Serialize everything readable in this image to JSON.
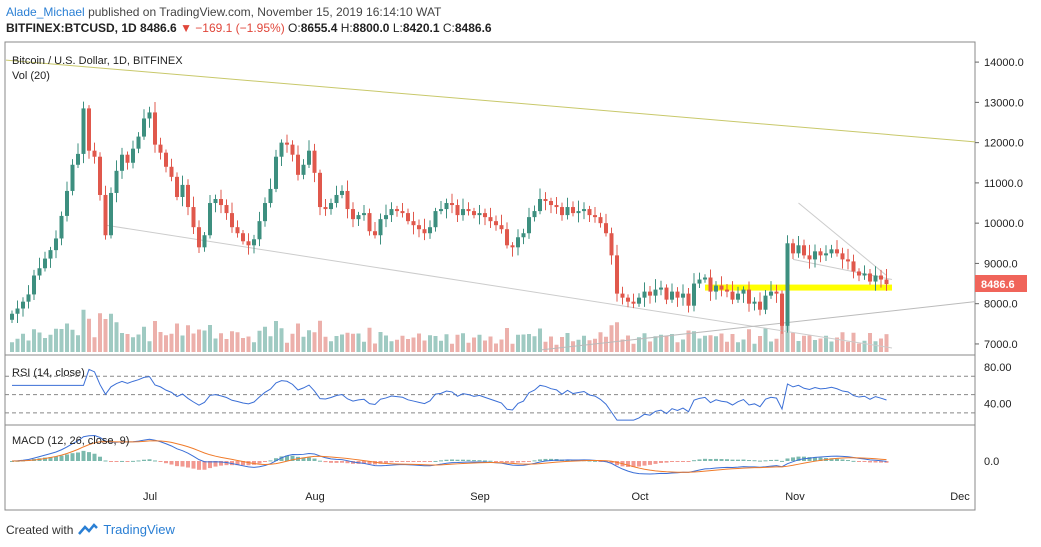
{
  "header": {
    "user": "Alade_Michael",
    "published_text": "published on TradingView.com, November 15, 2019 16:14:10 WAT",
    "symbol": "BITFINEX:BTCUSD, 1D",
    "last": "8486.6",
    "change": "−169.1 (−1.95%)",
    "o_label": "O:",
    "o": "8655.4",
    "h_label": "H:",
    "h": "8800.0",
    "l_label": "L:",
    "l": "8420.1",
    "c_label": "C:",
    "c": "8486.6"
  },
  "panes": {
    "main_title": "Bitcoin / U.S. Dollar, 1D, BITFINEX",
    "vol_title": "Vol (20)",
    "rsi_title": "RSI (14, close)",
    "macd_title": "MACD (12, 26, close, 9)"
  },
  "price_label": "8486.6",
  "footer": {
    "created_with": "Created with",
    "brand": "TradingView"
  },
  "colors": {
    "up": "#3d8f7f",
    "down": "#e0584c",
    "rsi": "#3b6fd6",
    "signal": "#f07b2a",
    "highlight": "#ffff00",
    "trend": "#ffffff",
    "long_trend": "#c8c86a"
  },
  "chart_data": {
    "type": "candlestick",
    "title": "Bitcoin / U.S. Dollar, 1D, BITFINEX",
    "symbol": "BITFINEX:BTCUSD",
    "interval": "1D",
    "x_ticks": [
      "Jul",
      "Aug",
      "Sep",
      "Oct",
      "Nov",
      "Dec"
    ],
    "y_ticks": [
      7000.0,
      8000.0,
      9000.0,
      10000.0,
      11000.0,
      12000.0,
      13000.0,
      14000.0
    ],
    "y_range": [
      6800,
      14400
    ],
    "last_price": 8486.6,
    "highlight_level": 8400,
    "rsi_ticks": [
      40.0,
      80.0
    ],
    "rsi_bands": [
      30,
      50,
      70
    ],
    "macd_ticks": [
      0.0
    ],
    "series": [
      {
        "name": "close",
        "values": [
          7750,
          7880,
          8050,
          8230,
          8700,
          8880,
          9120,
          9330,
          9620,
          10180,
          10800,
          11450,
          11720,
          12850,
          11800,
          11650,
          10700,
          9700,
          10750,
          11300,
          11700,
          11500,
          11850,
          12150,
          12600,
          12750,
          11950,
          11750,
          11400,
          11150,
          10650,
          10950,
          10400,
          9900,
          9400,
          9700,
          10500,
          10600,
          10450,
          10250,
          9900,
          9750,
          9550,
          9450,
          9600,
          10050,
          10500,
          10850,
          11650,
          12000,
          11950,
          11700,
          11200,
          11450,
          11800,
          11250,
          10400,
          10350,
          10500,
          10700,
          10800,
          10350,
          10100,
          10200,
          10250,
          9800,
          9700,
          10100,
          10200,
          10350,
          10300,
          10250,
          10050,
          9950,
          9850,
          9750,
          9900,
          10300,
          10350,
          10500,
          10450,
          10200,
          10350,
          10300,
          10200,
          10250,
          10150,
          10050,
          9950,
          9850,
          9450,
          9400,
          9650,
          9750,
          10150,
          10300,
          10600,
          10550,
          10450,
          10400,
          10200,
          10400,
          10250,
          10300,
          10350,
          10200,
          10150,
          10000,
          9750,
          9200,
          8250,
          8150,
          8050,
          8000,
          8150,
          8300,
          8200,
          8350,
          8400,
          8100,
          8300,
          8150,
          8250,
          7950,
          8500,
          8600,
          8650,
          8300,
          8450,
          8350,
          8300,
          8100,
          8250,
          8350,
          8000,
          8050,
          7850,
          8200,
          8300,
          8250,
          7450,
          9500,
          9250,
          9450,
          9200,
          9100,
          9300,
          9200,
          9250,
          9350,
          9250,
          9100,
          9050,
          8800,
          8700,
          8750,
          8550,
          8700,
          8600,
          8486.6
        ]
      }
    ]
  }
}
